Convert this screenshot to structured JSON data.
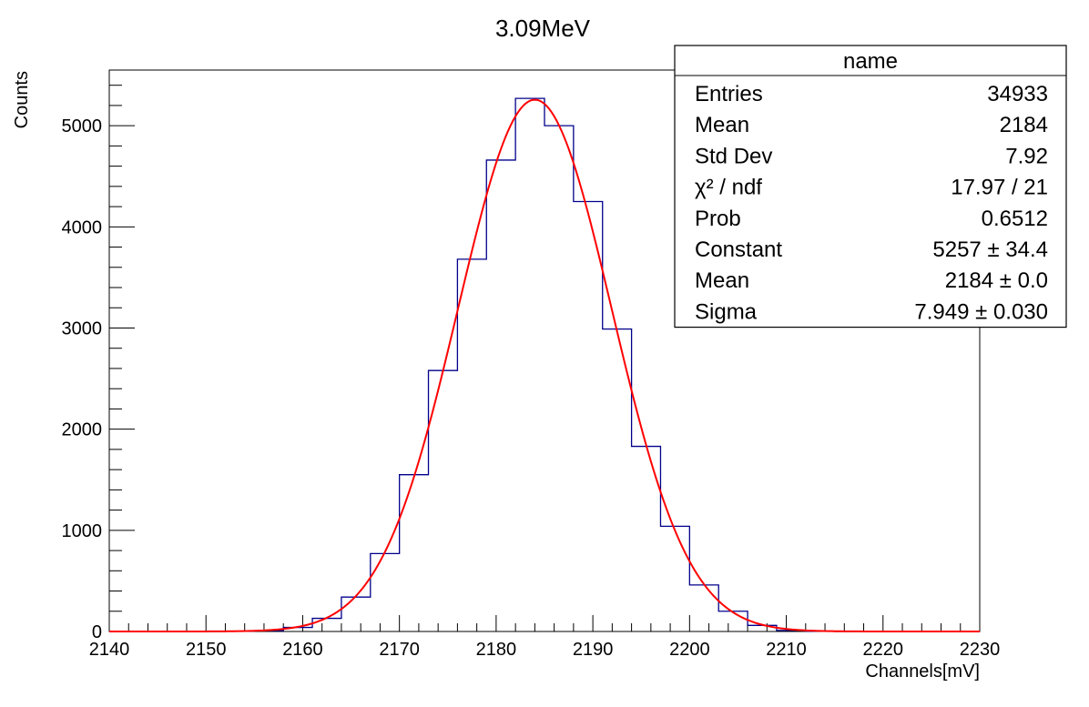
{
  "chart_data": {
    "type": "bar",
    "title": "3.09MeV",
    "xlabel": "Channels[mV]",
    "ylabel": "Counts",
    "xlim": [
      2140,
      2230
    ],
    "ylim": [
      0,
      5550
    ],
    "x_ticks": [
      2140,
      2150,
      2160,
      2170,
      2180,
      2190,
      2200,
      2210,
      2220,
      2230
    ],
    "y_ticks": [
      0,
      1000,
      2000,
      3000,
      4000,
      5000
    ],
    "grid": false,
    "histogram": {
      "bin_edges": [
        2140,
        2143,
        2146,
        2149,
        2152,
        2155,
        2158,
        2161,
        2164,
        2167,
        2170,
        2173,
        2176,
        2179,
        2182,
        2185,
        2188,
        2191,
        2194,
        2197,
        2200,
        2203,
        2206,
        2209,
        2212,
        2215,
        2218,
        2221,
        2224,
        2227,
        2230
      ],
      "counts": [
        0,
        0,
        0,
        0,
        2,
        8,
        40,
        130,
        340,
        770,
        1550,
        2580,
        3680,
        4660,
        5270,
        5000,
        4250,
        2990,
        1830,
        1040,
        460,
        200,
        60,
        10,
        2,
        0,
        0,
        0,
        0,
        0
      ],
      "line_color": "#00008b"
    },
    "fit": {
      "name": "gaus",
      "constant": 5257,
      "mean": 2184,
      "sigma": 7.949,
      "line_color": "#ff0000"
    },
    "stats_box": {
      "title": "name",
      "rows": [
        {
          "label": "Entries",
          "value": "34933"
        },
        {
          "label": "Mean",
          "value": "2184"
        },
        {
          "label": "Std Dev",
          "value": "7.92"
        },
        {
          "label": "χ² / ndf",
          "value": "17.97 / 21"
        },
        {
          "label": "Prob",
          "value": "0.6512"
        },
        {
          "label": "Constant",
          "value": "5257 ± 34.4"
        },
        {
          "label": "Mean",
          "value": "2184 ± 0.0"
        },
        {
          "label": "Sigma",
          "value": "7.949 ± 0.030"
        }
      ],
      "placement": "top-right"
    }
  }
}
